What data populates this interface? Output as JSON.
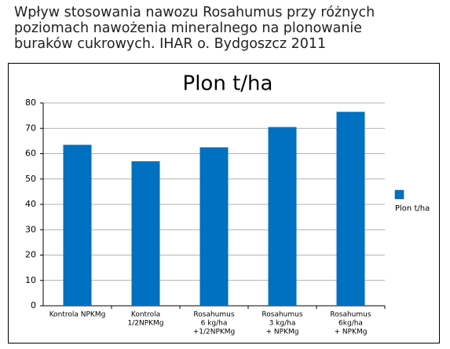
{
  "header": {
    "lines": [
      "Wpływ stosowania nawozu Rosahumus przy różnych",
      "poziomach nawożenia mineralnego na plonowanie",
      "buraków cukrowych. IHAR o. Bydgoszcz 2011"
    ]
  },
  "chart_data": {
    "type": "bar",
    "title": "Plon t/ha",
    "categories": [
      [
        "Kontrola NPKMg"
      ],
      [
        "Kontrola",
        "1/2NPKMg"
      ],
      [
        "Rosahumus",
        "6 kg/ha",
        "+1/2NPKMg"
      ],
      [
        "Rosahumus",
        "3 kg/ha",
        "+ NPKMg"
      ],
      [
        "Rosahumus",
        "6kg/ha",
        "+ NPKMg"
      ]
    ],
    "series": [
      {
        "name": "Plon t/ha",
        "color": "#0070c0",
        "values": [
          63.5,
          57,
          62.5,
          70.5,
          76.5
        ]
      }
    ],
    "ylim": [
      0,
      80
    ],
    "yticks": [
      0,
      10,
      20,
      30,
      40,
      50,
      60,
      70,
      80
    ],
    "grid": true,
    "legend": "right"
  }
}
